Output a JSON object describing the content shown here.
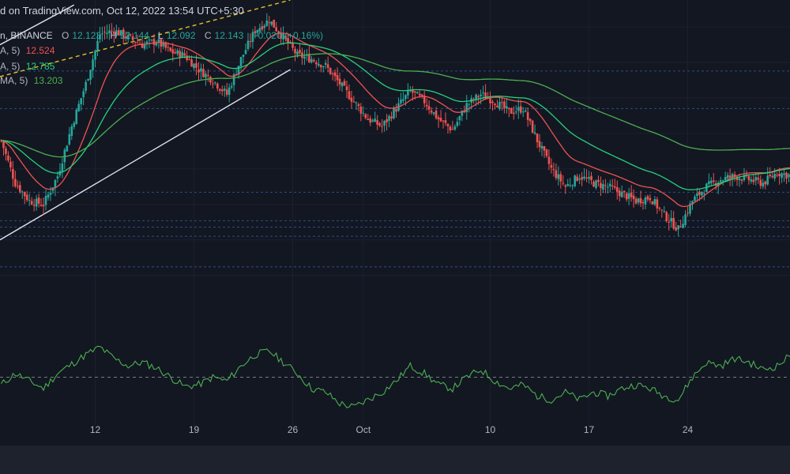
{
  "header": {
    "published_text": "d on TradingView.com, Oct 12, 2022 13:54 UTC+5:30"
  },
  "symbol": {
    "name_tail": "n, BINANCE",
    "o_label": "O",
    "o_val": "12.123",
    "h_label": "H",
    "h_val": "12.144",
    "l_label": "L",
    "l_val": "12.092",
    "c_label": "C",
    "c_val": "12.143",
    "change": "+0.020 (+0.16%)"
  },
  "indicators": [
    {
      "label": "A, 5)",
      "value": "12.524",
      "color": "#ef5350"
    },
    {
      "label": "A, 5)",
      "value": "12.785",
      "color": "#26d07c"
    },
    {
      "label": "MA, 5)",
      "value": "13.203",
      "color": "#4caf50"
    }
  ],
  "colors": {
    "background": "#131722",
    "up": "#26a69a",
    "down": "#ef5350",
    "ema_fast": "#ef5350",
    "ema_mid": "#26d07c",
    "ema_slow": "#4caf50",
    "rsi": "#4caf50",
    "channel": "#e0e3eb",
    "channel_dashed": "#e6c229"
  },
  "chart_data": {
    "type": "candlestick",
    "x_axis": {
      "tick_labels": [
        "12",
        "19",
        "26",
        "Oct",
        "10",
        "17",
        "24"
      ],
      "tick_dates": [
        "2022-09-12",
        "2022-09-19",
        "2022-09-26",
        "2022-10-01",
        "2022-10-10",
        "2022-10-17",
        "2022-10-24"
      ],
      "range": [
        "2022-09-05T06:00",
        "2022-10-31T06:00"
      ]
    },
    "y_range": [
      11.35,
      15.38
    ],
    "candles_per_day": 6,
    "close_path": [
      [
        0,
        13.4
      ],
      [
        6,
        12.8
      ],
      [
        12,
        12.55
      ],
      [
        18,
        12.5
      ],
      [
        24,
        12.9
      ],
      [
        30,
        13.6
      ],
      [
        36,
        14.2
      ],
      [
        42,
        14.9
      ],
      [
        48,
        14.95
      ],
      [
        54,
        14.85
      ],
      [
        60,
        14.75
      ],
      [
        66,
        14.8
      ],
      [
        72,
        14.65
      ],
      [
        78,
        14.6
      ],
      [
        84,
        14.4
      ],
      [
        90,
        14.25
      ],
      [
        96,
        14.05
      ],
      [
        102,
        14.55
      ],
      [
        108,
        14.95
      ],
      [
        114,
        15.1
      ],
      [
        120,
        14.85
      ],
      [
        126,
        14.6
      ],
      [
        132,
        14.55
      ],
      [
        138,
        14.45
      ],
      [
        144,
        14.2
      ],
      [
        150,
        13.95
      ],
      [
        156,
        13.7
      ],
      [
        162,
        13.6
      ],
      [
        168,
        13.85
      ],
      [
        174,
        14.1
      ],
      [
        180,
        13.95
      ],
      [
        186,
        13.7
      ],
      [
        192,
        13.55
      ],
      [
        198,
        13.9
      ],
      [
        204,
        14.05
      ],
      [
        210,
        13.95
      ],
      [
        216,
        13.8
      ],
      [
        222,
        13.85
      ],
      [
        228,
        13.4
      ],
      [
        234,
        13.0
      ],
      [
        240,
        12.75
      ],
      [
        246,
        12.9
      ],
      [
        252,
        12.8
      ],
      [
        258,
        12.75
      ],
      [
        264,
        12.65
      ],
      [
        270,
        12.55
      ],
      [
        276,
        12.6
      ],
      [
        282,
        12.35
      ],
      [
        288,
        12.15
      ],
      [
        294,
        12.55
      ],
      [
        300,
        12.75
      ],
      [
        306,
        12.85
      ],
      [
        312,
        12.9
      ],
      [
        318,
        12.85
      ],
      [
        324,
        12.8
      ],
      [
        330,
        12.95
      ],
      [
        336,
        12.9
      ],
      [
        342,
        12.85
      ],
      [
        348,
        12.95
      ],
      [
        354,
        12.95
      ],
      [
        360,
        12.9
      ],
      [
        366,
        12.95
      ],
      [
        372,
        12.95
      ],
      [
        378,
        12.7
      ],
      [
        384,
        12.45
      ],
      [
        390,
        12.3
      ],
      [
        396,
        12.14
      ]
    ],
    "close_price": 12.143,
    "horizontal_levels": [
      14.38,
      13.85,
      12.67,
      12.27,
      12.18,
      12.05,
      11.62
    ],
    "channel_lines": [
      {
        "style": "solid",
        "from": [
          "2022-09-05T06:00",
          14.75
        ],
        "to": [
          "2022-09-10T12:00",
          15.31
        ]
      },
      {
        "style": "dashed",
        "from": [
          "2022-09-05T06:00",
          14.3
        ],
        "to": [
          "2022-09-25T20:00",
          15.38
        ]
      },
      {
        "style": "solid",
        "from": [
          "2022-09-05T06:00",
          12.0
        ],
        "to": [
          "2022-09-25T20:00",
          14.4
        ]
      }
    ],
    "ema_fast": {
      "period": 9,
      "last": 12.524
    },
    "ema_mid": {
      "period": 21,
      "last": 12.785
    },
    "ema_slow": {
      "period": 50,
      "last": 13.203
    },
    "rsi": {
      "ref_level": 50,
      "range": [
        30,
        70
      ],
      "path": [
        [
          0,
          46
        ],
        [
          6,
          52
        ],
        [
          12,
          48
        ],
        [
          18,
          44
        ],
        [
          24,
          52
        ],
        [
          36,
          62
        ],
        [
          42,
          66
        ],
        [
          48,
          60
        ],
        [
          54,
          56
        ],
        [
          60,
          58
        ],
        [
          66,
          55
        ],
        [
          72,
          50
        ],
        [
          78,
          45
        ],
        [
          84,
          46
        ],
        [
          90,
          50
        ],
        [
          96,
          48
        ],
        [
          102,
          56
        ],
        [
          108,
          62
        ],
        [
          114,
          64
        ],
        [
          120,
          58
        ],
        [
          126,
          52
        ],
        [
          132,
          44
        ],
        [
          138,
          42
        ],
        [
          144,
          36
        ],
        [
          150,
          34
        ],
        [
          156,
          38
        ],
        [
          162,
          42
        ],
        [
          168,
          48
        ],
        [
          174,
          56
        ],
        [
          180,
          52
        ],
        [
          186,
          46
        ],
        [
          192,
          44
        ],
        [
          198,
          50
        ],
        [
          204,
          54
        ],
        [
          210,
          48
        ],
        [
          216,
          44
        ],
        [
          222,
          46
        ],
        [
          228,
          40
        ],
        [
          234,
          38
        ],
        [
          240,
          42
        ],
        [
          246,
          38
        ],
        [
          252,
          42
        ],
        [
          258,
          40
        ],
        [
          264,
          44
        ],
        [
          270,
          46
        ],
        [
          276,
          44
        ],
        [
          282,
          40
        ],
        [
          288,
          38
        ],
        [
          294,
          50
        ],
        [
          300,
          58
        ],
        [
          306,
          56
        ],
        [
          312,
          60
        ],
        [
          318,
          58
        ],
        [
          324,
          54
        ],
        [
          330,
          56
        ],
        [
          336,
          62
        ],
        [
          342,
          58
        ],
        [
          348,
          54
        ],
        [
          354,
          60
        ],
        [
          360,
          56
        ],
        [
          366,
          50
        ],
        [
          372,
          54
        ],
        [
          378,
          48
        ],
        [
          384,
          44
        ],
        [
          390,
          46
        ],
        [
          396,
          49
        ]
      ]
    }
  }
}
